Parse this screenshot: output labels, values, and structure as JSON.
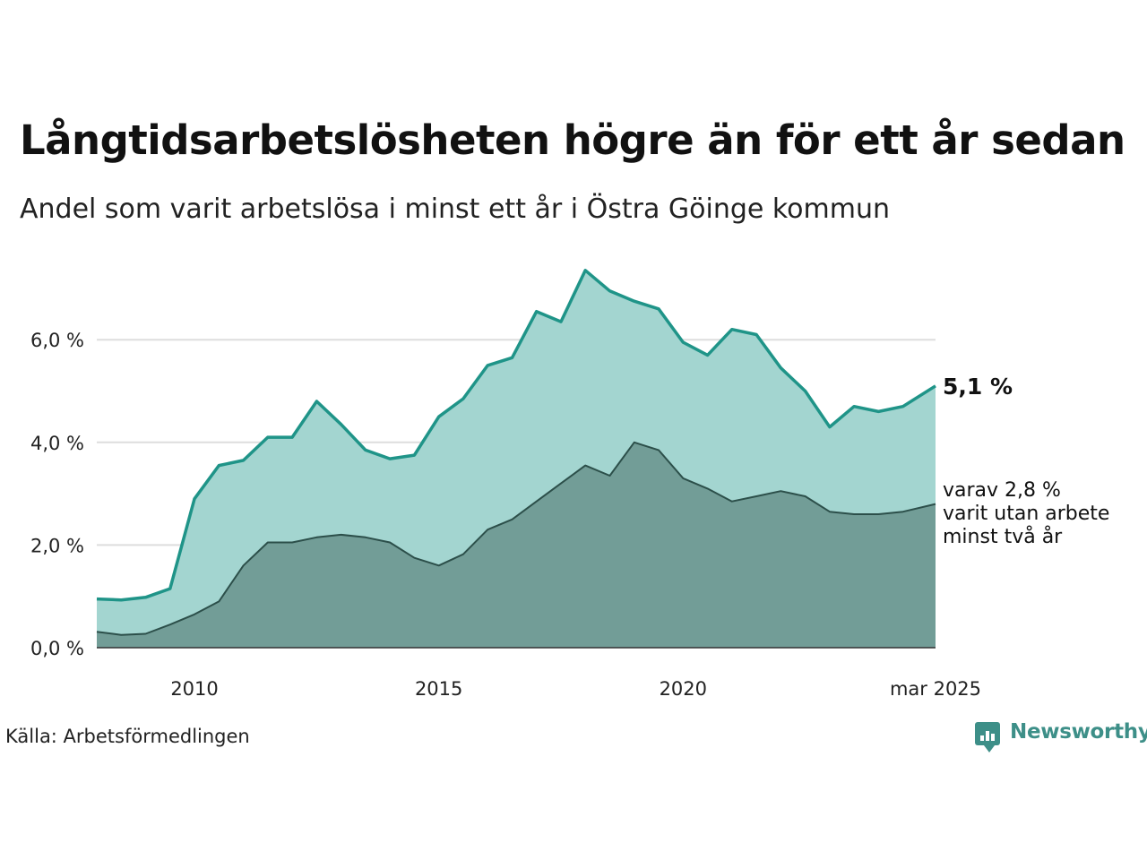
{
  "title": "Långtidsarbetslösheten högre än för ett år sedan",
  "subtitle": "Andel som varit arbetslösa i minst ett år i Östra Göinge kommun",
  "source": "Källa: Arbetsförmedlingen",
  "logo_text": "Newsworthy",
  "colors": {
    "total_line": "#1f9488",
    "total_fill": "#a3d5d0",
    "sub_line": "#2c4f4a",
    "sub_fill": "#729d97",
    "grid": "#dddddd",
    "baseline": "#333333",
    "brand": "#3d8f88"
  },
  "chart_data": {
    "type": "area",
    "x_start": "2008-01",
    "x_end": "2025-03",
    "ylim": [
      0,
      7.5
    ],
    "y_ticks": [
      {
        "value": 0,
        "label": "0,0 %"
      },
      {
        "value": 2,
        "label": "2,0 %"
      },
      {
        "value": 4,
        "label": "4,0 %"
      },
      {
        "value": 6,
        "label": "6,0 %"
      }
    ],
    "x_ticks": [
      {
        "date": "2010-01",
        "label": "2010"
      },
      {
        "date": "2015-01",
        "label": "2015"
      },
      {
        "date": "2020-01",
        "label": "2020"
      },
      {
        "date": "2025-03",
        "label": "mar 2025"
      }
    ],
    "grid": true,
    "annotations": {
      "total": "5,1 %",
      "sub": [
        "varav 2,8 %",
        "varit utan arbete",
        "minst två år"
      ]
    },
    "series": [
      {
        "key": "total",
        "x": [
          "2008-01",
          "2008-07",
          "2009-01",
          "2009-07",
          "2010-01",
          "2010-07",
          "2011-01",
          "2011-07",
          "2012-01",
          "2012-07",
          "2013-01",
          "2013-07",
          "2014-01",
          "2014-07",
          "2015-01",
          "2015-07",
          "2016-01",
          "2016-07",
          "2017-01",
          "2017-07",
          "2018-01",
          "2018-07",
          "2019-01",
          "2019-07",
          "2020-01",
          "2020-07",
          "2021-01",
          "2021-07",
          "2022-01",
          "2022-07",
          "2023-01",
          "2023-07",
          "2024-01",
          "2024-07",
          "2025-03"
        ],
        "values": [
          0.95,
          0.93,
          0.98,
          1.15,
          2.9,
          3.55,
          3.65,
          4.1,
          4.1,
          4.8,
          4.35,
          3.85,
          3.68,
          3.75,
          4.5,
          4.85,
          5.5,
          5.65,
          6.55,
          6.35,
          7.35,
          6.95,
          6.75,
          6.6,
          5.95,
          5.7,
          6.2,
          6.1,
          5.45,
          5.0,
          4.3,
          4.7,
          4.6,
          4.7,
          5.1
        ]
      },
      {
        "key": "sub",
        "x": [
          "2008-01",
          "2008-07",
          "2009-01",
          "2009-07",
          "2010-01",
          "2010-07",
          "2011-01",
          "2011-07",
          "2012-01",
          "2012-07",
          "2013-01",
          "2013-07",
          "2014-01",
          "2014-07",
          "2015-01",
          "2015-07",
          "2016-01",
          "2016-07",
          "2017-01",
          "2017-07",
          "2018-01",
          "2018-07",
          "2019-01",
          "2019-07",
          "2020-01",
          "2020-07",
          "2021-01",
          "2021-07",
          "2022-01",
          "2022-07",
          "2023-01",
          "2023-07",
          "2024-01",
          "2024-07",
          "2025-03"
        ],
        "values": [
          0.31,
          0.25,
          0.27,
          0.45,
          0.65,
          0.9,
          1.6,
          2.05,
          2.05,
          2.15,
          2.2,
          2.15,
          2.05,
          1.75,
          1.6,
          1.82,
          2.3,
          2.5,
          2.85,
          3.2,
          3.55,
          3.35,
          4.0,
          3.85,
          3.3,
          3.1,
          2.85,
          2.95,
          3.05,
          2.95,
          2.65,
          2.6,
          2.6,
          2.65,
          2.8
        ]
      }
    ]
  }
}
